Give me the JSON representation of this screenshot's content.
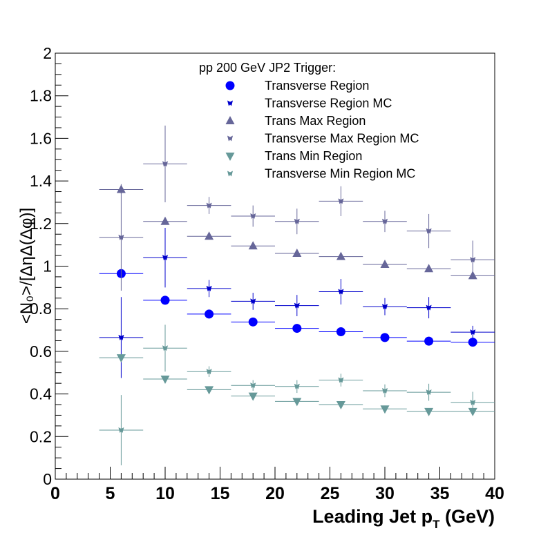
{
  "chart_data": {
    "type": "scatter",
    "title": "",
    "legend_title": "pp 200 GeV JP2 Trigger:",
    "xlabel_main": "Leading Jet p",
    "xlabel_sub": "T",
    "xlabel_unit": " (GeV)",
    "ylabel": "<N₀>/[ΔηΔ(Δφ)]",
    "xlim": [
      0,
      40
    ],
    "ylim": [
      0,
      2
    ],
    "x_ticks": [
      0,
      5,
      10,
      15,
      20,
      25,
      30,
      35,
      40
    ],
    "y_ticks": [
      0,
      0.2,
      0.4,
      0.6,
      0.8,
      1,
      1.2,
      1.4,
      1.6,
      1.8,
      2
    ],
    "x_tick_labels": [
      "0",
      "5",
      "10",
      "15",
      "20",
      "25",
      "30",
      "35",
      "40"
    ],
    "y_tick_labels": [
      "0",
      "0.2",
      "0.4",
      "0.6",
      "0.8",
      "1",
      "1.2",
      "1.4",
      "1.6",
      "1.8",
      "2"
    ],
    "grid": false,
    "legend_position": "top",
    "series": [
      {
        "name": "Transverse Region",
        "marker": "circle",
        "color": "#0000ff",
        "x": [
          6,
          10,
          14,
          18,
          22,
          26,
          30,
          34,
          38
        ],
        "y": [
          0.965,
          0.84,
          0.775,
          0.738,
          0.708,
          0.692,
          0.665,
          0.648,
          0.643
        ],
        "xerr": [
          2,
          2,
          2,
          2,
          2,
          2,
          2,
          2,
          2
        ],
        "yerr": [
          0,
          0,
          0,
          0,
          0,
          0,
          0,
          0,
          0
        ]
      },
      {
        "name": "Transverse Region MC",
        "marker": "mc",
        "color": "#0000cc",
        "x": [
          6,
          10,
          14,
          18,
          22,
          26,
          30,
          34,
          38
        ],
        "y": [
          0.665,
          1.04,
          0.895,
          0.835,
          0.815,
          0.88,
          0.81,
          0.805,
          0.69
        ],
        "xerr": [
          2,
          2,
          2,
          2,
          2,
          2,
          2,
          2,
          2
        ],
        "yerr": [
          0.19,
          0.14,
          0.04,
          0.04,
          0.05,
          0.06,
          0.04,
          0.05,
          0.03
        ]
      },
      {
        "name": "Trans Max Region",
        "marker": "triangle-up",
        "color": "#666699",
        "x": [
          6,
          10,
          14,
          18,
          22,
          26,
          30,
          34,
          38
        ],
        "y": [
          1.36,
          1.21,
          1.14,
          1.095,
          1.06,
          1.045,
          1.008,
          0.988,
          0.955
        ],
        "xerr": [
          2,
          2,
          2,
          2,
          2,
          2,
          2,
          2,
          2
        ],
        "yerr": [
          0.02,
          0,
          0,
          0,
          0,
          0,
          0,
          0,
          0
        ]
      },
      {
        "name": "Transverse Max Region MC",
        "marker": "mc",
        "color": "#666699",
        "x": [
          6,
          10,
          14,
          18,
          22,
          26,
          30,
          34,
          38
        ],
        "y": [
          1.135,
          1.48,
          1.285,
          1.235,
          1.21,
          1.305,
          1.21,
          1.165,
          1.03
        ],
        "xerr": [
          2,
          2,
          2,
          2,
          2,
          2,
          2,
          2,
          2
        ],
        "yerr": [
          0.25,
          0.18,
          0.04,
          0.05,
          0.06,
          0.07,
          0.05,
          0.08,
          0.09
        ]
      },
      {
        "name": "Trans Min Region",
        "marker": "triangle-down",
        "color": "#669999",
        "x": [
          6,
          10,
          14,
          18,
          22,
          26,
          30,
          34,
          38
        ],
        "y": [
          0.57,
          0.47,
          0.42,
          0.39,
          0.365,
          0.35,
          0.33,
          0.318,
          0.318
        ],
        "xerr": [
          2,
          2,
          2,
          2,
          2,
          2,
          2,
          2,
          2
        ],
        "yerr": [
          0,
          0,
          0,
          0,
          0,
          0,
          0,
          0,
          0
        ]
      },
      {
        "name": "Transverse Min Region MC",
        "marker": "mc",
        "color": "#669999",
        "x": [
          6,
          10,
          14,
          18,
          22,
          26,
          30,
          34,
          38
        ],
        "y": [
          0.23,
          0.615,
          0.505,
          0.44,
          0.435,
          0.465,
          0.415,
          0.408,
          0.36
        ],
        "xerr": [
          2,
          2,
          2,
          2,
          2,
          2,
          2,
          2,
          2
        ],
        "yerr": [
          0.165,
          0.11,
          0.025,
          0.025,
          0.03,
          0.03,
          0.03,
          0.04,
          0.05
        ]
      }
    ]
  }
}
